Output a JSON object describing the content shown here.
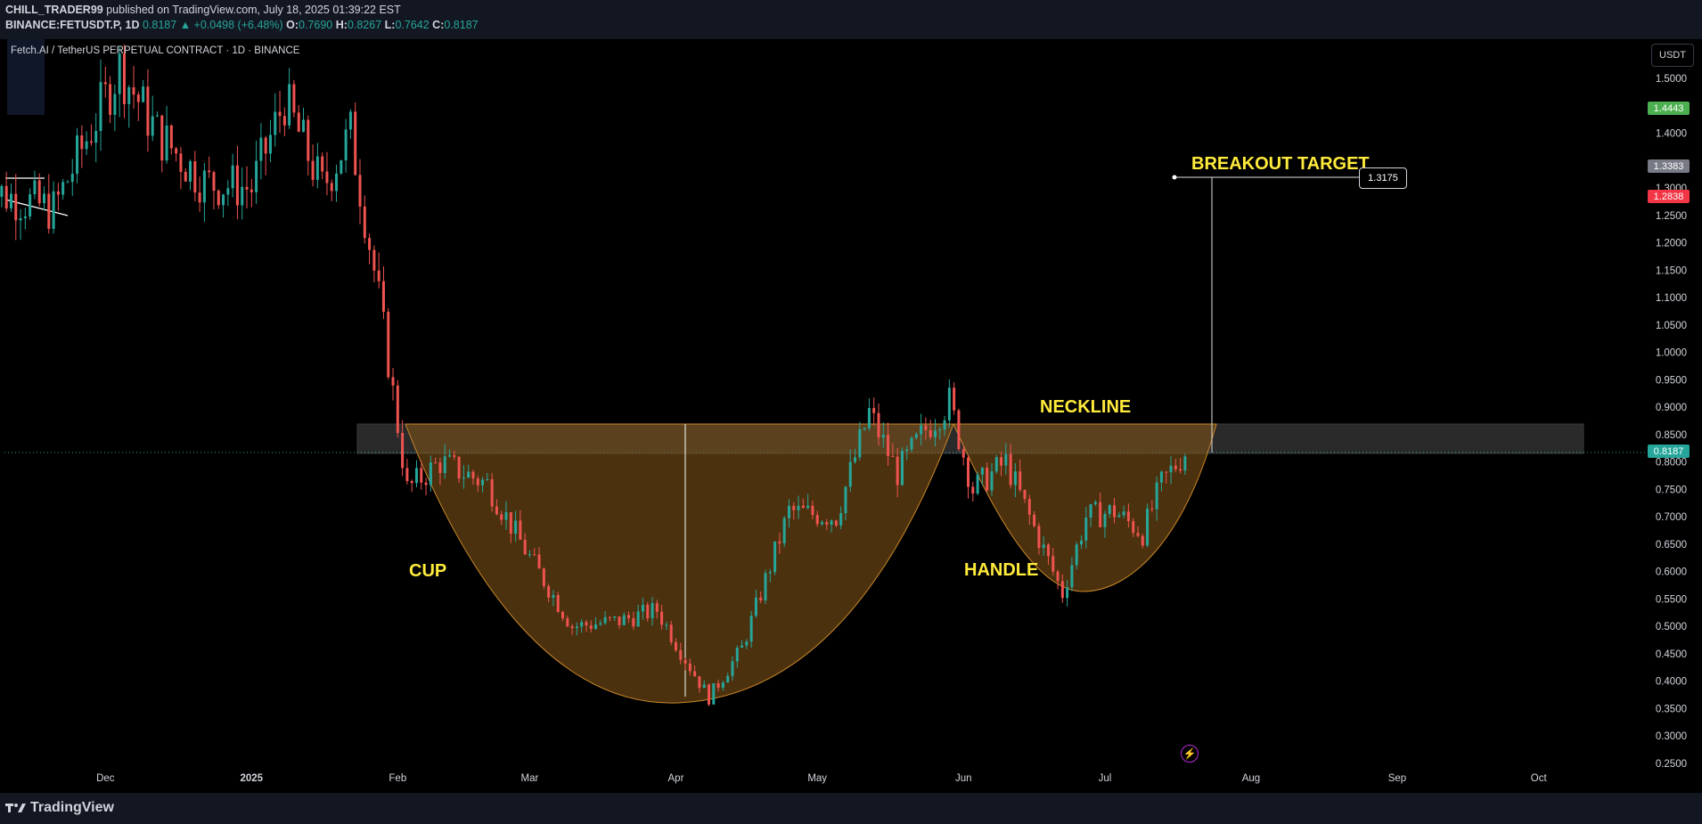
{
  "header": {
    "author": "CHILL_TRADER99",
    "published_text": "published on TradingView.com, July 18, 2025 01:39:22 EST",
    "symbol_text": "BINANCE:FETUSDT.P, 1D",
    "last": "0.8187",
    "change": "+0.0498 (+6.48%)",
    "o_label": "O:",
    "o": "0.7690",
    "h_label": "H:",
    "h": "0.8267",
    "l_label": "L:",
    "l": "0.7642",
    "c_label": "C:",
    "c": "0.8187"
  },
  "pair_title": "Fetch.AI / TetherUS PERPETUAL CONTRACT · 1D · BINANCE",
  "currency_button": "USDT",
  "annotations": {
    "cup": "CUP",
    "handle": "HANDLE",
    "neckline": "NECKLINE",
    "breakout": "BREAKOUT TARGET",
    "target_value": "1.3175"
  },
  "price_tags": [
    {
      "label": "1.4443",
      "price": 1.4443,
      "bg": "#4caf50",
      "fg": "#ffffff"
    },
    {
      "label": "1.3383",
      "price": 1.3383,
      "bg": "#787b86",
      "fg": "#ffffff"
    },
    {
      "label": "1.2838",
      "price": 1.2838,
      "bg": "#f23645",
      "fg": "#ffffff"
    },
    {
      "label": "0.8187",
      "price": 0.8187,
      "bg": "#26a69a",
      "fg": "#ffffff"
    }
  ],
  "colors": {
    "up": "#26a69a",
    "down": "#ef5350",
    "accent_yellow": "#ffeb3b",
    "cup_fill": "#7a4f16",
    "cup_stroke": "#c8862a"
  },
  "footer": {
    "logo": "TradingView"
  },
  "chart_data": {
    "type": "candlestick",
    "title": "Fetch.AI / TetherUS PERPETUAL CONTRACT · 1D · BINANCE",
    "y_ticks": [
      "1.5000",
      "1.4000",
      "1.3000",
      "1.2500",
      "1.2000",
      "1.1500",
      "1.1000",
      "1.0500",
      "1.0000",
      "0.9500",
      "0.9000",
      "0.8500",
      "0.8000",
      "0.7500",
      "0.7000",
      "0.6500",
      "0.6000",
      "0.5500",
      "0.5000",
      "0.4500",
      "0.4000",
      "0.3500",
      "0.3000",
      "0.2500"
    ],
    "x_ticks": [
      "Dec",
      "2025",
      "Feb",
      "Mar",
      "Apr",
      "May",
      "Jun",
      "Jul",
      "Aug",
      "Sep",
      "Oct"
    ],
    "ylim": [
      0.23,
      1.53
    ],
    "neckline_zone": [
      0.82,
      0.87
    ],
    "current_price": 0.8187,
    "breakout_target": 1.3175,
    "price_series": [
      {
        "date": "2024-11-05",
        "close": 1.3
      },
      {
        "date": "2024-11-20",
        "close": 1.26
      },
      {
        "date": "2024-12-04",
        "close": 1.52
      },
      {
        "date": "2024-12-12",
        "close": 1.4
      },
      {
        "date": "2024-12-22",
        "close": 1.31
      },
      {
        "date": "2025-01-01",
        "close": 1.3
      },
      {
        "date": "2025-01-08",
        "close": 1.46
      },
      {
        "date": "2025-01-16",
        "close": 1.3
      },
      {
        "date": "2025-01-22",
        "close": 1.4
      },
      {
        "date": "2025-01-28",
        "close": 1.1
      },
      {
        "date": "2025-02-03",
        "close": 0.75
      },
      {
        "date": "2025-02-10",
        "close": 0.8
      },
      {
        "date": "2025-02-20",
        "close": 0.76
      },
      {
        "date": "2025-02-28",
        "close": 0.64
      },
      {
        "date": "2025-03-10",
        "close": 0.5
      },
      {
        "date": "2025-03-20",
        "close": 0.51
      },
      {
        "date": "2025-03-28",
        "close": 0.53
      },
      {
        "date": "2025-04-03",
        "close": 0.44
      },
      {
        "date": "2025-04-08",
        "close": 0.37
      },
      {
        "date": "2025-04-15",
        "close": 0.46
      },
      {
        "date": "2025-04-25",
        "close": 0.71
      },
      {
        "date": "2025-05-05",
        "close": 0.7
      },
      {
        "date": "2025-05-12",
        "close": 0.89
      },
      {
        "date": "2025-05-18",
        "close": 0.78
      },
      {
        "date": "2025-05-24",
        "close": 0.86
      },
      {
        "date": "2025-05-29",
        "close": 0.91
      },
      {
        "date": "2025-06-03",
        "close": 0.75
      },
      {
        "date": "2025-06-10",
        "close": 0.8
      },
      {
        "date": "2025-06-16",
        "close": 0.68
      },
      {
        "date": "2025-06-22",
        "close": 0.56
      },
      {
        "date": "2025-06-27",
        "close": 0.7
      },
      {
        "date": "2025-07-03",
        "close": 0.71
      },
      {
        "date": "2025-07-09",
        "close": 0.67
      },
      {
        "date": "2025-07-13",
        "close": 0.76
      },
      {
        "date": "2025-07-18",
        "close": 0.8187
      }
    ]
  }
}
